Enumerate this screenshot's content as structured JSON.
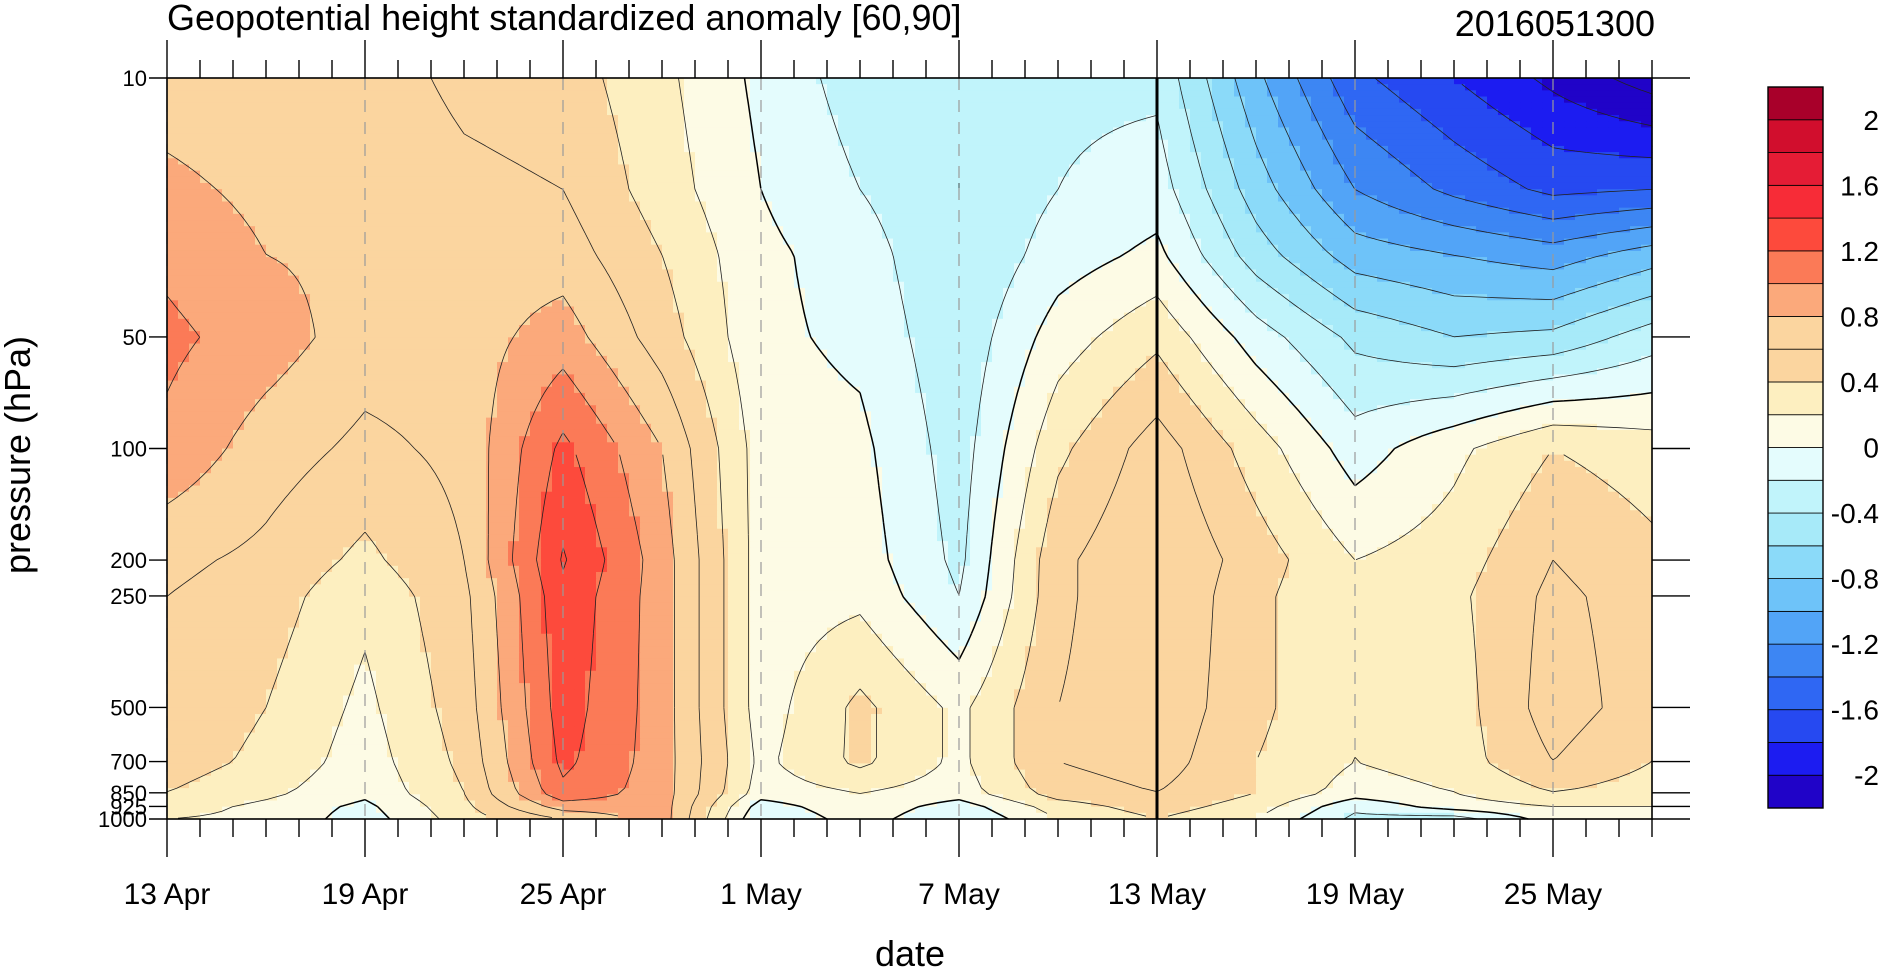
{
  "chart_data": {
    "type": "heatmap",
    "title": "Geopotential height standardized anomaly [60,90]",
    "date_stamp": "2016051300",
    "xlabel": "date",
    "ylabel": "pressure (hPa)",
    "x_tick_labels": [
      "13 Apr",
      "19 Apr",
      "25 Apr",
      "1 May",
      "7 May",
      "13 May",
      "19 May",
      "25 May"
    ],
    "x_tick_days": [
      0,
      6,
      12,
      18,
      24,
      30,
      36,
      42
    ],
    "x_range_days": [
      0,
      45
    ],
    "y_tick_labels": [
      "10",
      "50",
      "100",
      "200",
      "250",
      "500",
      "700",
      "850",
      "925",
      "1000"
    ],
    "y_tick_values": [
      10,
      50,
      100,
      200,
      250,
      500,
      700,
      850,
      925,
      1000
    ],
    "y_scale": "log",
    "y_range": [
      1000,
      10
    ],
    "vertical_line_day": 30,
    "dashed_gridlines": "x ticks",
    "legend": "right colorbar",
    "colorbar": {
      "levels": [
        -2.2,
        -2.0,
        -1.8,
        -1.6,
        -1.4,
        -1.2,
        -1.0,
        -0.8,
        -0.6,
        -0.4,
        -0.2,
        0,
        0.2,
        0.4,
        0.6,
        0.8,
        1.0,
        1.2,
        1.4,
        1.6,
        1.8,
        2.0,
        2.2
      ],
      "labels": [
        "2",
        "1.6",
        "1.2",
        "0.8",
        "0.4",
        "0",
        "-0.4",
        "-0.8",
        "-1.2",
        "-1.6",
        "-2"
      ],
      "label_values": [
        2,
        1.6,
        1.2,
        0.8,
        0.4,
        0,
        -0.4,
        -0.8,
        -1.2,
        -1.6,
        -2
      ],
      "colors": [
        "#2003c8",
        "#1c1cf1",
        "#2649f1",
        "#2f67f3",
        "#3d86f3",
        "#52a4f7",
        "#6ec3f9",
        "#8bdaf9",
        "#a7eaf9",
        "#c1f4fb",
        "#e4fcfd",
        "#fdfbe5",
        "#fdefc0",
        "#fbd59f",
        "#fbd59f",
        "#fba97b",
        "#fb7a57",
        "#fd4a3c",
        "#f72c37",
        "#e51c35",
        "#d10e2d",
        "#a8002a"
      ]
    },
    "x_days": [
      0,
      3,
      6,
      9,
      12,
      15,
      18,
      21,
      24,
      27,
      30,
      33,
      36,
      39,
      42,
      45
    ],
    "y_levels": [
      1000,
      925,
      850,
      700,
      500,
      250,
      200,
      100,
      50,
      30,
      20,
      10
    ],
    "z": [
      [
        0.2,
        0.15,
        -0.1,
        0.3,
        0.6,
        0.9,
        -0.2,
        0.1,
        -0.2,
        0.2,
        0.4,
        0.2,
        -0.25,
        -0.3,
        0.1,
        0.1
      ],
      [
        0.3,
        0.15,
        -0.05,
        0.35,
        0.9,
        0.9,
        -0.1,
        0.15,
        -0.1,
        0.3,
        0.5,
        0.3,
        -0.15,
        0.1,
        0.2,
        0.2
      ],
      [
        0.4,
        0.25,
        0.05,
        0.4,
        1.15,
        0.9,
        0.1,
        0.2,
        0.1,
        0.5,
        0.6,
        0.4,
        0.1,
        0.2,
        0.4,
        0.3
      ],
      [
        0.5,
        0.35,
        0.1,
        0.45,
        1.25,
        0.9,
        0.15,
        0.45,
        0.15,
        0.6,
        0.7,
        0.4,
        0.2,
        0.3,
        0.6,
        0.4
      ],
      [
        0.55,
        0.4,
        0.15,
        0.5,
        1.3,
        0.9,
        0.1,
        0.45,
        0.15,
        0.6,
        0.75,
        0.45,
        0.2,
        0.3,
        0.7,
        0.5
      ],
      [
        0.6,
        0.5,
        0.25,
        0.55,
        1.35,
        0.9,
        0.1,
        0.15,
        -0.2,
        0.55,
        0.8,
        0.45,
        0.2,
        0.35,
        0.65,
        0.5
      ],
      [
        0.65,
        0.55,
        0.35,
        0.6,
        1.42,
        0.9,
        0.1,
        0.1,
        -0.25,
        0.55,
        0.8,
        0.5,
        0.2,
        0.3,
        0.6,
        0.45
      ],
      [
        0.95,
        0.7,
        0.55,
        0.65,
        1.25,
        0.8,
        0.1,
        0.05,
        -0.3,
        0.35,
        0.7,
        0.3,
        -0.1,
        0.15,
        0.4,
        0.3
      ],
      [
        1.05,
        0.9,
        0.7,
        0.7,
        0.9,
        0.5,
        0.05,
        -0.05,
        -0.35,
        0.1,
        0.35,
        -0.1,
        -0.45,
        -0.6,
        -0.55,
        -0.3
      ],
      [
        0.95,
        0.8,
        0.75,
        0.7,
        0.7,
        0.4,
        0.05,
        -0.1,
        -0.4,
        -0.1,
        0.05,
        -0.5,
        -0.9,
        -1.0,
        -1.1,
        -0.9
      ],
      [
        0.85,
        0.75,
        0.75,
        0.65,
        0.6,
        0.3,
        0.0,
        -0.2,
        -0.4,
        -0.2,
        -0.1,
        -0.7,
        -1.2,
        -1.45,
        -1.65,
        -1.6
      ],
      [
        0.7,
        0.65,
        0.7,
        0.55,
        0.5,
        0.25,
        -0.05,
        -0.3,
        -0.4,
        -0.25,
        -0.25,
        -0.95,
        -1.55,
        -1.8,
        -2.05,
        -2.3
      ]
    ]
  }
}
